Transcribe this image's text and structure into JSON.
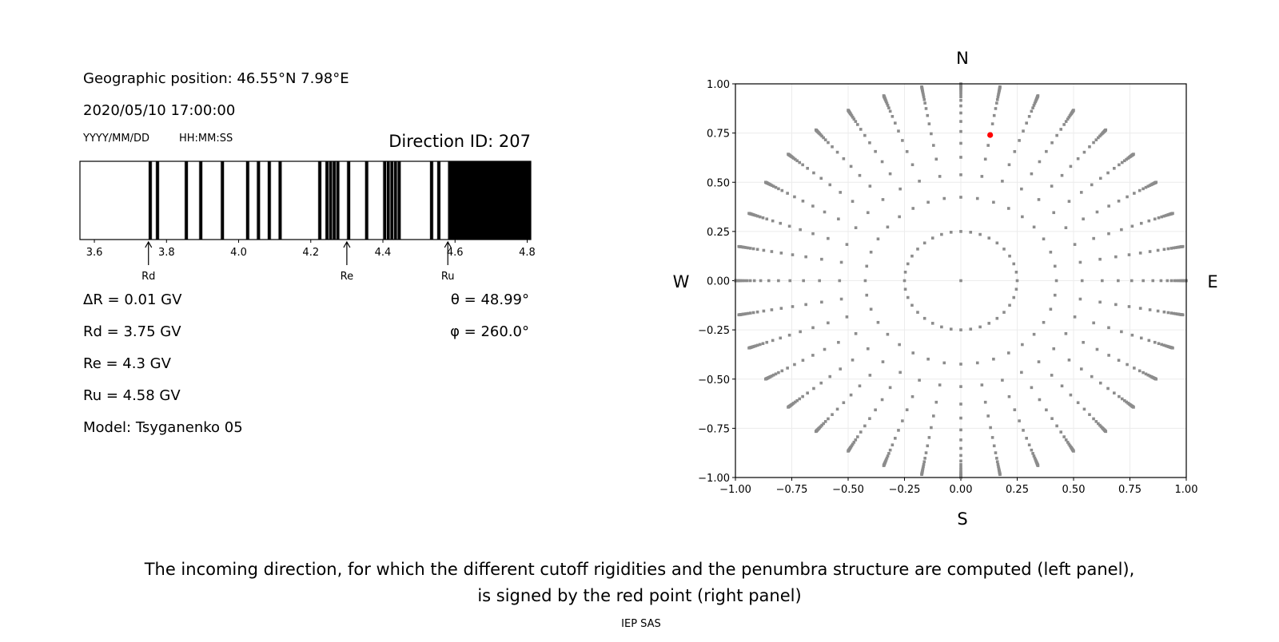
{
  "info": {
    "geo_position": "Geographic position: 46.55°N 7.98°E",
    "datetime": "2020/05/10 17:00:00",
    "date_format": "YYYY/MM/DD",
    "time_format": "HH:MM:SS",
    "direction_id": "Direction ID: 207",
    "delta_r": "ΔR = 0.01 GV",
    "rd": "Rd = 3.75 GV",
    "re": "Re = 4.3 GV",
    "ru": "Ru = 4.58 GV",
    "model": "Model: Tsyganenko 05",
    "theta": "θ = 48.99°",
    "phi": "φ = 260.0°"
  },
  "chart_data": [
    {
      "type": "heatmap",
      "description_role": "penumbra",
      "xlim": [
        3.56,
        4.81
      ],
      "step": 0.01,
      "xticks": [
        "3.6",
        "3.8",
        "4.0",
        "4.2",
        "4.4",
        "4.6",
        "4.8"
      ],
      "forbidden_black": [
        3.75,
        3.77,
        3.85,
        3.89,
        3.95,
        4.02,
        4.05,
        4.08,
        4.11,
        4.22,
        4.24,
        4.25,
        4.26,
        4.27,
        4.3,
        4.35,
        4.4,
        4.41,
        4.42,
        4.43,
        4.44,
        4.53,
        4.55
      ],
      "fully_forbidden_from": 4.58,
      "markers": [
        {
          "label": "Rd",
          "value": 3.75
        },
        {
          "label": "Re",
          "value": 4.3
        },
        {
          "label": "Ru",
          "value": 4.58
        }
      ],
      "colors": {
        "forbidden": "#000000",
        "allowed": "#ffffff"
      }
    },
    {
      "type": "scatter",
      "xlim": [
        -1.0,
        1.0
      ],
      "ylim": [
        -1.0,
        1.0
      ],
      "xticks": [
        "−1.00",
        "−0.75",
        "−0.50",
        "−0.25",
        "0.00",
        "0.25",
        "0.50",
        "0.75",
        "1.00"
      ],
      "yticks": [
        "−1.00",
        "−0.75",
        "−0.50",
        "−0.25",
        "0.00",
        "0.25",
        "0.50",
        "0.75",
        "1.00"
      ],
      "grid": true,
      "compass": {
        "north": "N",
        "south": "S",
        "west": "W",
        "east": "E"
      },
      "directions": {
        "center": [
          0,
          0
        ],
        "inner_ring_radius": 0.25,
        "azimuth_step_deg": 10,
        "spoke_radii": [
          0.424,
          0.538,
          0.627,
          0.698,
          0.758,
          0.809,
          0.852,
          0.888,
          0.916,
          0.934,
          0.948,
          0.959,
          0.968,
          0.975,
          0.98,
          0.984,
          0.988,
          0.991,
          0.993,
          0.995,
          0.997,
          0.998,
          1.0
        ],
        "color": "#8c8c8c"
      },
      "selected": {
        "x": 0.13,
        "y": 0.74,
        "color": "#ff0000"
      }
    }
  ],
  "caption": {
    "line1": "The incoming direction, for which the different cutoff rigidities and the penumbra structure are computed (left panel),",
    "line2": "is signed by the red point (right panel)",
    "credit": "IEP SAS"
  }
}
